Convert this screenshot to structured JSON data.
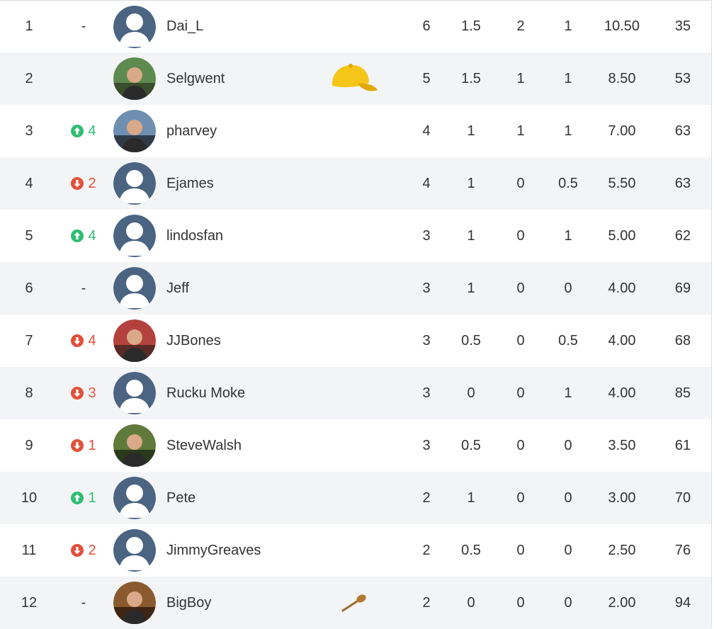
{
  "colors": {
    "up": "#2ebd72",
    "down": "#e2503a",
    "avatar_default": "#4a6482",
    "row_alt": "#f3f4f6"
  },
  "rows": [
    {
      "rank": "1",
      "move": "-",
      "dir": "none",
      "avatar": "default",
      "name": "Dai_L",
      "badge": "",
      "p": "6",
      "w": "1.5",
      "d": "2",
      "l": "1",
      "pts": "10.50",
      "gd": "35"
    },
    {
      "rank": "2",
      "move": "",
      "dir": "none",
      "avatar": "photo",
      "name": "Selgwent",
      "badge": "yellow-cap-icon",
      "p": "5",
      "w": "1.5",
      "d": "1",
      "l": "1",
      "pts": "8.50",
      "gd": "53"
    },
    {
      "rank": "3",
      "move": "4",
      "dir": "up",
      "avatar": "photo",
      "name": "pharvey",
      "badge": "",
      "p": "4",
      "w": "1",
      "d": "1",
      "l": "1",
      "pts": "7.00",
      "gd": "63"
    },
    {
      "rank": "4",
      "move": "2",
      "dir": "down",
      "avatar": "default",
      "name": "Ejames",
      "badge": "",
      "p": "4",
      "w": "1",
      "d": "0",
      "l": "0.5",
      "pts": "5.50",
      "gd": "63"
    },
    {
      "rank": "5",
      "move": "4",
      "dir": "up",
      "avatar": "default",
      "name": "lindosfan",
      "badge": "",
      "p": "3",
      "w": "1",
      "d": "0",
      "l": "1",
      "pts": "5.00",
      "gd": "62"
    },
    {
      "rank": "6",
      "move": "-",
      "dir": "none",
      "avatar": "default",
      "name": "Jeff",
      "badge": "",
      "p": "3",
      "w": "1",
      "d": "0",
      "l": "0",
      "pts": "4.00",
      "gd": "69"
    },
    {
      "rank": "7",
      "move": "4",
      "dir": "down",
      "avatar": "photo",
      "name": "JJBones",
      "badge": "",
      "p": "3",
      "w": "0.5",
      "d": "0",
      "l": "0.5",
      "pts": "4.00",
      "gd": "68"
    },
    {
      "rank": "8",
      "move": "3",
      "dir": "down",
      "avatar": "default",
      "name": "Rucku Moke",
      "badge": "",
      "p": "3",
      "w": "0",
      "d": "0",
      "l": "1",
      "pts": "4.00",
      "gd": "85"
    },
    {
      "rank": "9",
      "move": "1",
      "dir": "down",
      "avatar": "photo",
      "name": "SteveWalsh",
      "badge": "",
      "p": "3",
      "w": "0.5",
      "d": "0",
      "l": "0",
      "pts": "3.50",
      "gd": "61"
    },
    {
      "rank": "10",
      "move": "1",
      "dir": "up",
      "avatar": "default",
      "name": "Pete",
      "badge": "",
      "p": "2",
      "w": "1",
      "d": "0",
      "l": "0",
      "pts": "3.00",
      "gd": "70"
    },
    {
      "rank": "11",
      "move": "2",
      "dir": "down",
      "avatar": "default",
      "name": "JimmyGreaves",
      "badge": "",
      "p": "2",
      "w": "0.5",
      "d": "0",
      "l": "0",
      "pts": "2.50",
      "gd": "76"
    },
    {
      "rank": "12",
      "move": "-",
      "dir": "none",
      "avatar": "photo",
      "name": "BigBoy",
      "badge": "wooden-spoon-icon",
      "p": "2",
      "w": "0",
      "d": "0",
      "l": "0",
      "pts": "2.00",
      "gd": "94"
    }
  ]
}
